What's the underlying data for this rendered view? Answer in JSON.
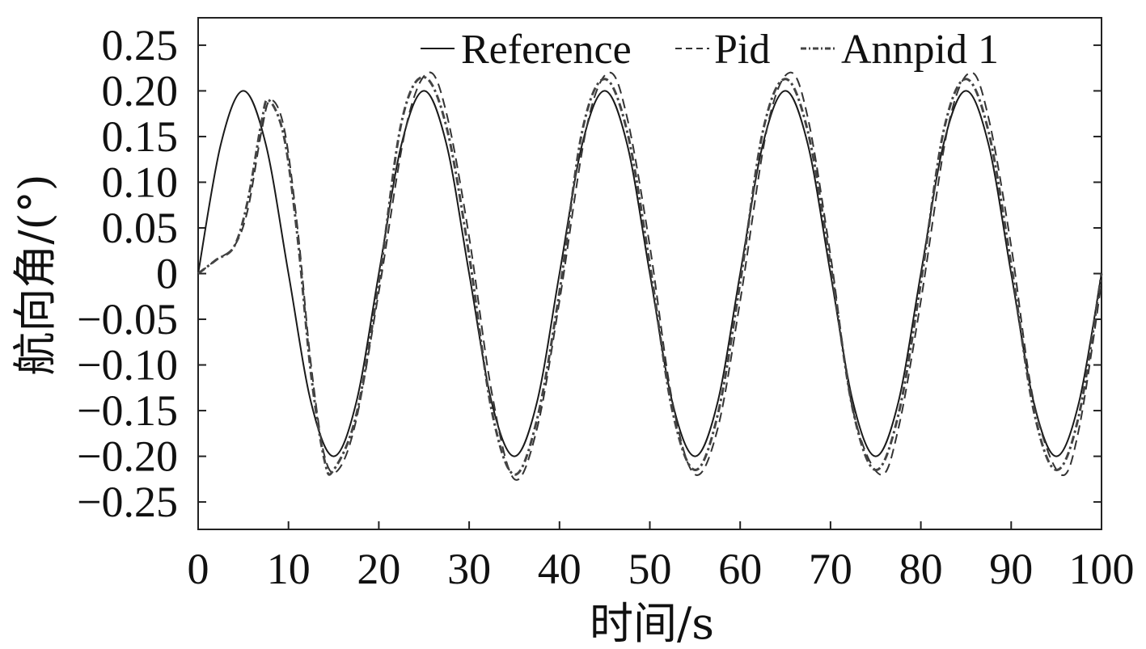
{
  "chart_data": {
    "type": "line",
    "title": "",
    "xlabel": "时间/s",
    "ylabel": "航向角/(°)",
    "xlim": [
      0,
      100
    ],
    "ylim": [
      -0.28,
      0.28
    ],
    "xticks": [
      0,
      10,
      20,
      30,
      40,
      50,
      60,
      70,
      80,
      90,
      100
    ],
    "xtick_labels": [
      "0",
      "10",
      "20",
      "30",
      "40",
      "50",
      "60",
      "70",
      "80",
      "90",
      "100"
    ],
    "yticks": [
      0.25,
      0.2,
      0.15,
      0.1,
      0.05,
      0,
      -0.05,
      -0.1,
      -0.15,
      -0.2,
      -0.25
    ],
    "ytick_labels": [
      "0.25",
      "0.20",
      "0.15",
      "0.10",
      "0.05",
      "0",
      "−0.05",
      "−0.10",
      "−0.15",
      "−0.20",
      "−0.25"
    ],
    "grid": false,
    "legend_position": "top-right",
    "series": [
      {
        "name": "Reference",
        "style": "solid",
        "color": "#1a1a1a",
        "x": [
          0,
          2.5,
          5,
          7.5,
          10,
          12.5,
          15,
          17.5,
          20,
          22.5,
          25,
          27.5,
          30,
          32.5,
          35,
          37.5,
          40,
          42.5,
          45,
          47.5,
          50,
          52.5,
          55,
          57.5,
          60,
          62.5,
          65,
          67.5,
          70,
          72.5,
          75,
          77.5,
          80,
          82.5,
          85,
          87.5,
          90,
          92.5,
          95,
          97.5,
          100
        ],
        "y": [
          0,
          0.141,
          0.2,
          0.141,
          0,
          -0.141,
          -0.2,
          -0.141,
          0,
          0.141,
          0.2,
          0.141,
          0,
          -0.141,
          -0.2,
          -0.141,
          0,
          0.141,
          0.2,
          0.141,
          0,
          -0.141,
          -0.2,
          -0.141,
          0,
          0.141,
          0.2,
          0.141,
          0,
          -0.141,
          -0.2,
          -0.141,
          0,
          0.141,
          0.2,
          0.141,
          0,
          -0.141,
          -0.2,
          -0.141,
          0
        ]
      },
      {
        "name": "Pid",
        "style": "dashed",
        "color": "#333333",
        "x": [
          0,
          2,
          4,
          5.5,
          7,
          8,
          9.5,
          11,
          12.5,
          14,
          15.5,
          17.5,
          20,
          23,
          25.5,
          27.5,
          30,
          32.5,
          35,
          37.5,
          40,
          43,
          45.5,
          47.5,
          50,
          52.5,
          55,
          57.5,
          60,
          63,
          65.5,
          67.5,
          70,
          72.5,
          75.5,
          77.5,
          80,
          83,
          85.5,
          87.5,
          90,
          92.5,
          95.5,
          97.5,
          100
        ],
        "y": [
          0,
          0.015,
          0.03,
          0.07,
          0.155,
          0.19,
          0.16,
          0.05,
          -0.1,
          -0.2,
          -0.215,
          -0.16,
          -0.02,
          0.16,
          0.22,
          0.175,
          0.04,
          -0.13,
          -0.225,
          -0.17,
          -0.03,
          0.16,
          0.22,
          0.17,
          0.03,
          -0.14,
          -0.22,
          -0.17,
          -0.03,
          0.16,
          0.22,
          0.17,
          0.02,
          -0.15,
          -0.22,
          -0.17,
          -0.03,
          0.16,
          0.22,
          0.17,
          0.03,
          -0.14,
          -0.22,
          -0.17,
          -0.01
        ]
      },
      {
        "name": "Annpid 1",
        "style": "dashdot",
        "color": "#444444",
        "x": [
          0,
          2,
          4,
          5.5,
          7,
          7.8,
          9.5,
          11,
          12.5,
          14,
          15,
          17.5,
          20,
          22.5,
          25,
          27.5,
          30,
          32.5,
          35,
          37.5,
          40,
          42.5,
          45,
          47.5,
          50,
          52.5,
          55,
          57.5,
          60,
          62.5,
          65,
          67.5,
          70,
          72.5,
          75,
          77.5,
          80,
          82.5,
          85,
          87.5,
          90,
          92.5,
          95,
          97.5,
          100
        ],
        "y": [
          0,
          0.015,
          0.03,
          0.08,
          0.165,
          0.19,
          0.15,
          0.04,
          -0.11,
          -0.205,
          -0.215,
          -0.155,
          -0.01,
          0.165,
          0.215,
          0.16,
          0.02,
          -0.15,
          -0.22,
          -0.16,
          -0.02,
          0.155,
          0.213,
          0.155,
          0.01,
          -0.15,
          -0.215,
          -0.155,
          -0.01,
          0.155,
          0.213,
          0.155,
          0.01,
          -0.15,
          -0.215,
          -0.155,
          -0.01,
          0.155,
          0.213,
          0.155,
          0.01,
          -0.15,
          -0.215,
          -0.155,
          0
        ]
      }
    ]
  }
}
